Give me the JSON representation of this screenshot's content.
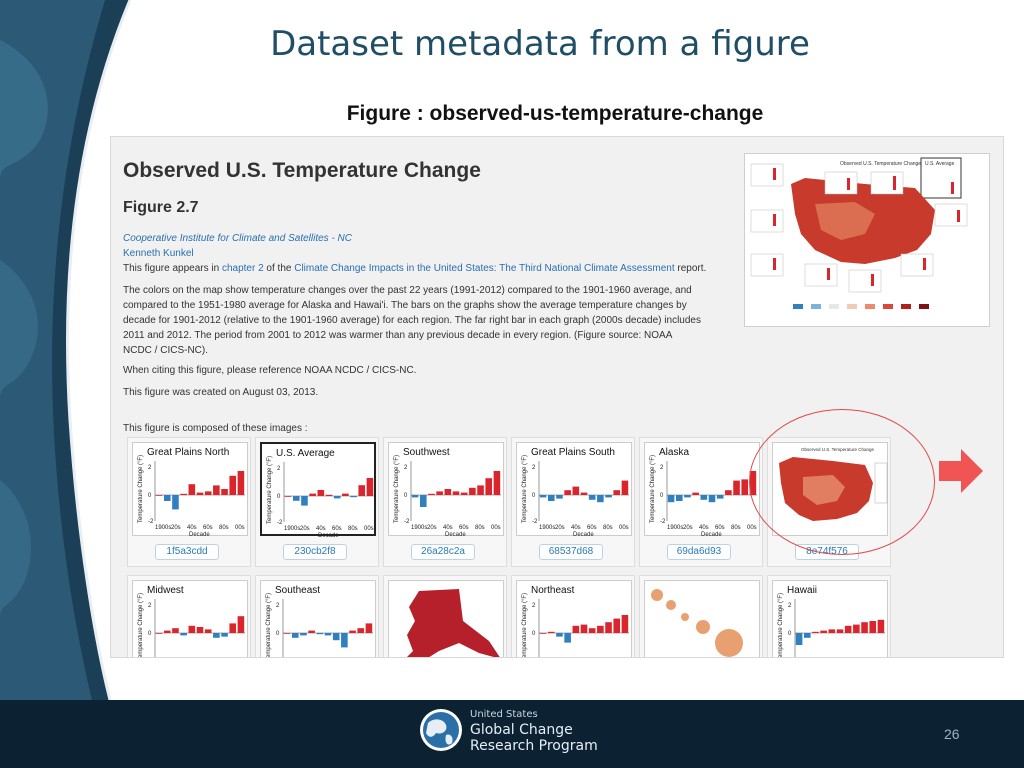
{
  "slide": {
    "title": "Dataset metadata from a figure",
    "figure_heading": "Figure : observed-us-temperature-change",
    "page_number": "26"
  },
  "figure_page": {
    "title": "Observed U.S. Temperature Change",
    "figure_number": "Figure 2.7",
    "org_link": "Cooperative Institute for Climate and Satellites - NC",
    "author_link": "Kenneth Kunkel",
    "appears_prefix": "This figure appears in ",
    "chapter_link": "chapter 2",
    "appears_mid": " of the ",
    "report_link": "Climate Change Impacts in the United States: The Third National Climate Assessment",
    "appears_suffix": " report.",
    "caption_lines": [
      "The colors on the map show temperature changes over the past 22 years (1991-2012) compared to the 1901-1960 average, and",
      "compared to the 1951-1980 average for Alaska and Hawai'i. The bars on the graphs show the average temperature changes by",
      "decade for 1901-2012 (relative to the 1901-1960 average) for each region. The far right bar in each graph (2000s decade) includes",
      "2011 and 2012. The period from 2001 to 2012 was warmer than any previous decade in every region. (Figure source: NOAA",
      "NCDC / CICS-NC)."
    ],
    "citation": "When citing this figure, please reference NOAA NCDC / CICS-NC.",
    "created": "This figure was created on August 03, 2013.",
    "composed": "This figure is composed of these images :",
    "thumbnail_title": "Observed U.S. Temperature Change",
    "thumbnail_badge": "U.S. Average"
  },
  "chart_axis": {
    "ylabel": "Temperature Change (°F)",
    "xlabel": "Decade",
    "xticks": [
      "1900s",
      "20s",
      "40s",
      "60s",
      "80s",
      "00s"
    ],
    "yticks": [
      "2",
      "0",
      "-2"
    ]
  },
  "images_row1": [
    {
      "region": "Great Plains North",
      "id": "1f5a3cdd"
    },
    {
      "region": "U.S. Average",
      "id": "230cb2f8"
    },
    {
      "region": "Southwest",
      "id": "26a28c2a"
    },
    {
      "region": "Great Plains South",
      "id": "68537d68"
    },
    {
      "region": "Alaska",
      "id": "69da6d93"
    },
    {
      "region": "",
      "id": "8e74f576",
      "map_title": "Observed U.S. Temperature Change"
    }
  ],
  "images_row2": [
    {
      "region": "Midwest"
    },
    {
      "region": "Southeast"
    },
    {
      "region": ""
    },
    {
      "region": "Northeast"
    },
    {
      "region": ""
    },
    {
      "region": "Hawaii"
    }
  ],
  "footer": {
    "line1": "United States",
    "line2": "Global Change",
    "line3": "Research Program"
  },
  "colors": {
    "warm": "#d9252b",
    "cool": "#2f7fc1",
    "title": "#1f4e66",
    "link": "#2a6fb0"
  }
}
